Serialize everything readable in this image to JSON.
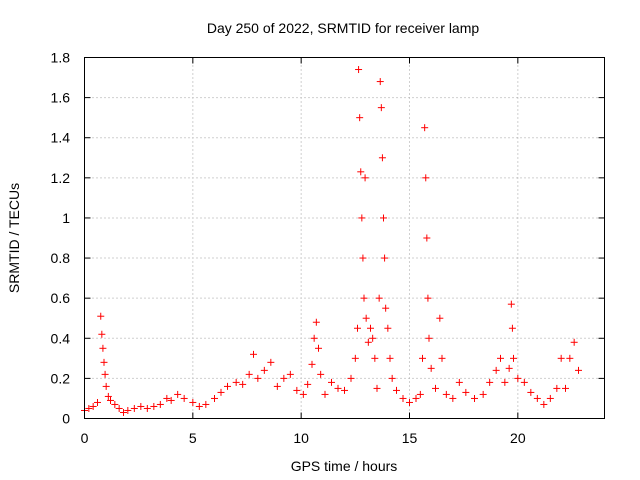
{
  "chart_data": {
    "type": "scatter",
    "title": "Day 250 of 2022, SRMTID for receiver lamp",
    "xlabel": "GPS time / hours",
    "ylabel": "SRMTID / TECUs",
    "xlim": [
      0,
      24
    ],
    "ylim": [
      0,
      1.8
    ],
    "x_ticks": [
      0,
      5,
      10,
      15,
      20
    ],
    "x_tick_labels": [
      "0",
      "5",
      "10",
      "15",
      "20"
    ],
    "y_ticks": [
      0,
      0.2,
      0.4,
      0.6,
      0.8,
      1.0,
      1.2,
      1.4,
      1.6,
      1.8
    ],
    "y_tick_labels": [
      "0",
      "0.2",
      "0.4",
      "0.6",
      "0.8",
      "1",
      "1.2",
      "1.4",
      "1.6",
      "1.8"
    ],
    "grid": true,
    "marker": "+",
    "marker_color": "#ff0000",
    "series": [
      {
        "name": "SRMTID",
        "points": [
          [
            0.0,
            0.04
          ],
          [
            0.2,
            0.05
          ],
          [
            0.4,
            0.06
          ],
          [
            0.6,
            0.08
          ],
          [
            0.75,
            0.51
          ],
          [
            0.8,
            0.42
          ],
          [
            0.85,
            0.35
          ],
          [
            0.9,
            0.28
          ],
          [
            0.95,
            0.22
          ],
          [
            1.0,
            0.16
          ],
          [
            1.1,
            0.11
          ],
          [
            1.2,
            0.09
          ],
          [
            1.4,
            0.07
          ],
          [
            1.6,
            0.05
          ],
          [
            1.8,
            0.03
          ],
          [
            2.0,
            0.04
          ],
          [
            2.3,
            0.05
          ],
          [
            2.6,
            0.06
          ],
          [
            2.9,
            0.05
          ],
          [
            3.2,
            0.06
          ],
          [
            3.5,
            0.07
          ],
          [
            3.8,
            0.1
          ],
          [
            4.0,
            0.09
          ],
          [
            4.3,
            0.12
          ],
          [
            4.6,
            0.1
          ],
          [
            5.0,
            0.08
          ],
          [
            5.3,
            0.06
          ],
          [
            5.6,
            0.07
          ],
          [
            6.0,
            0.1
          ],
          [
            6.3,
            0.13
          ],
          [
            6.6,
            0.16
          ],
          [
            7.0,
            0.18
          ],
          [
            7.3,
            0.17
          ],
          [
            7.6,
            0.22
          ],
          [
            7.8,
            0.32
          ],
          [
            8.0,
            0.2
          ],
          [
            8.3,
            0.24
          ],
          [
            8.6,
            0.28
          ],
          [
            8.9,
            0.16
          ],
          [
            9.2,
            0.2
          ],
          [
            9.5,
            0.22
          ],
          [
            9.8,
            0.14
          ],
          [
            10.1,
            0.12
          ],
          [
            10.3,
            0.17
          ],
          [
            10.5,
            0.27
          ],
          [
            10.6,
            0.4
          ],
          [
            10.7,
            0.48
          ],
          [
            10.8,
            0.35
          ],
          [
            10.9,
            0.22
          ],
          [
            11.1,
            0.12
          ],
          [
            11.4,
            0.18
          ],
          [
            11.7,
            0.15
          ],
          [
            12.0,
            0.14
          ],
          [
            12.3,
            0.2
          ],
          [
            12.5,
            0.3
          ],
          [
            12.6,
            0.45
          ],
          [
            12.65,
            1.74
          ],
          [
            12.7,
            1.5
          ],
          [
            12.75,
            1.23
          ],
          [
            12.8,
            1.0
          ],
          [
            12.85,
            0.8
          ],
          [
            12.9,
            0.6
          ],
          [
            12.95,
            1.2
          ],
          [
            13.0,
            0.5
          ],
          [
            13.1,
            0.38
          ],
          [
            13.2,
            0.45
          ],
          [
            13.3,
            0.4
          ],
          [
            13.4,
            0.3
          ],
          [
            13.5,
            0.15
          ],
          [
            13.6,
            0.6
          ],
          [
            13.65,
            1.68
          ],
          [
            13.7,
            1.55
          ],
          [
            13.75,
            1.3
          ],
          [
            13.8,
            1.0
          ],
          [
            13.85,
            0.8
          ],
          [
            13.9,
            0.55
          ],
          [
            14.0,
            0.45
          ],
          [
            14.1,
            0.3
          ],
          [
            14.2,
            0.2
          ],
          [
            14.4,
            0.14
          ],
          [
            14.7,
            0.1
          ],
          [
            15.0,
            0.08
          ],
          [
            15.3,
            0.1
          ],
          [
            15.5,
            0.12
          ],
          [
            15.6,
            0.3
          ],
          [
            15.7,
            1.45
          ],
          [
            15.75,
            1.2
          ],
          [
            15.8,
            0.9
          ],
          [
            15.85,
            0.6
          ],
          [
            15.9,
            0.4
          ],
          [
            16.0,
            0.25
          ],
          [
            16.2,
            0.15
          ],
          [
            16.4,
            0.5
          ],
          [
            16.5,
            0.3
          ],
          [
            16.7,
            0.12
          ],
          [
            17.0,
            0.1
          ],
          [
            17.3,
            0.18
          ],
          [
            17.6,
            0.13
          ],
          [
            18.0,
            0.1
          ],
          [
            18.4,
            0.12
          ],
          [
            18.7,
            0.18
          ],
          [
            19.0,
            0.24
          ],
          [
            19.2,
            0.3
          ],
          [
            19.4,
            0.18
          ],
          [
            19.6,
            0.25
          ],
          [
            19.7,
            0.57
          ],
          [
            19.75,
            0.45
          ],
          [
            19.8,
            0.3
          ],
          [
            20.0,
            0.2
          ],
          [
            20.3,
            0.18
          ],
          [
            20.6,
            0.13
          ],
          [
            20.9,
            0.1
          ],
          [
            21.2,
            0.07
          ],
          [
            21.5,
            0.1
          ],
          [
            21.8,
            0.15
          ],
          [
            22.0,
            0.3
          ],
          [
            22.2,
            0.15
          ],
          [
            22.4,
            0.3
          ],
          [
            22.6,
            0.38
          ],
          [
            22.8,
            0.24
          ]
        ]
      }
    ]
  }
}
